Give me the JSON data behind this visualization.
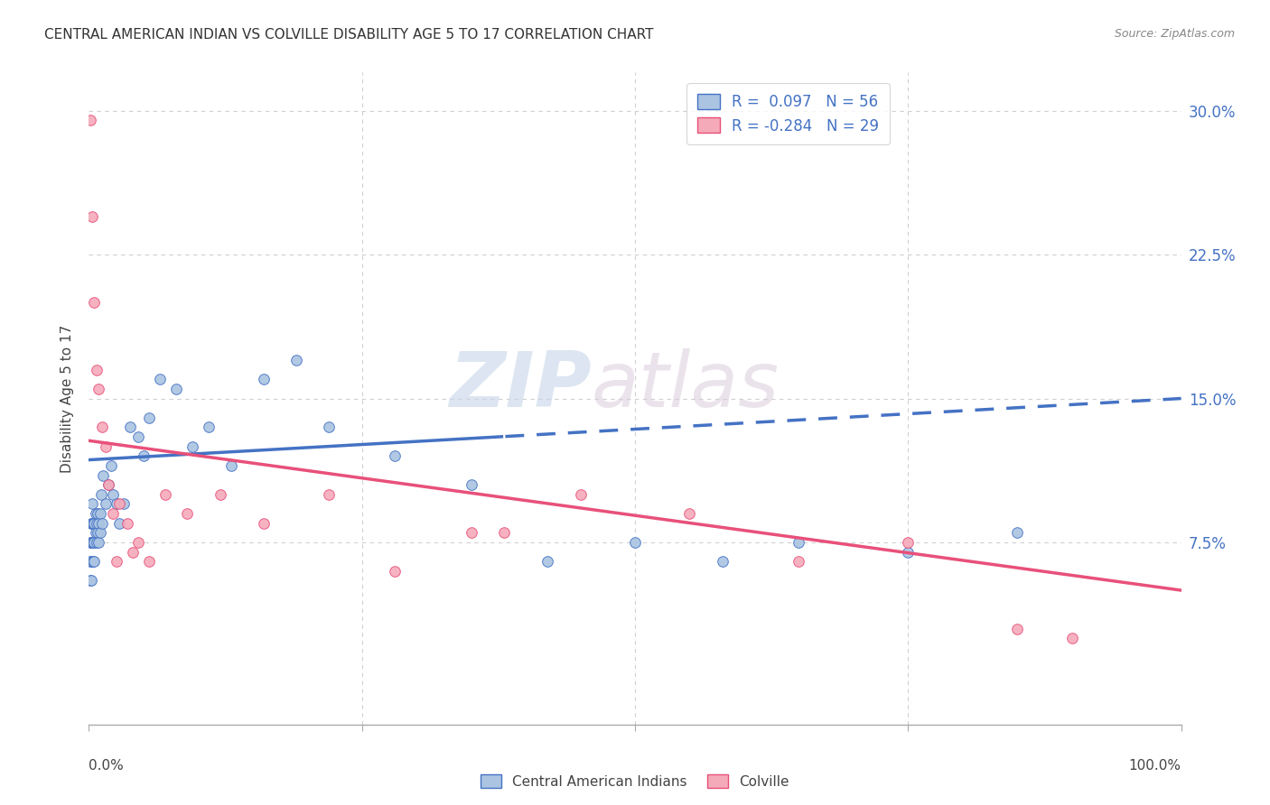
{
  "title": "CENTRAL AMERICAN INDIAN VS COLVILLE DISABILITY AGE 5 TO 17 CORRELATION CHART",
  "source": "Source: ZipAtlas.com",
  "ylabel": "Disability Age 5 to 17",
  "ytick_labels": [
    "7.5%",
    "15.0%",
    "22.5%",
    "30.0%"
  ],
  "ytick_values": [
    0.075,
    0.15,
    0.225,
    0.3
  ],
  "xlim": [
    0.0,
    1.0
  ],
  "ylim": [
    -0.02,
    0.32
  ],
  "blue_R": 0.097,
  "blue_N": 56,
  "pink_R": -0.284,
  "pink_N": 29,
  "blue_color": "#aac4e2",
  "pink_color": "#f5aaba",
  "blue_line_color": "#4472c4",
  "pink_line_color": "#e8507a",
  "watermark_zip": "ZIP",
  "watermark_atlas": "atlas",
  "legend_label_blue": "Central American Indians",
  "legend_label_pink": "Colville",
  "blue_line_solid_end": 0.38,
  "blue_points_x": [
    0.001,
    0.001,
    0.001,
    0.002,
    0.002,
    0.002,
    0.002,
    0.003,
    0.003,
    0.003,
    0.004,
    0.004,
    0.004,
    0.005,
    0.005,
    0.005,
    0.006,
    0.006,
    0.007,
    0.007,
    0.008,
    0.008,
    0.009,
    0.009,
    0.01,
    0.01,
    0.011,
    0.012,
    0.013,
    0.015,
    0.018,
    0.02,
    0.022,
    0.025,
    0.028,
    0.032,
    0.038,
    0.045,
    0.05,
    0.055,
    0.065,
    0.08,
    0.095,
    0.11,
    0.13,
    0.16,
    0.19,
    0.22,
    0.28,
    0.35,
    0.42,
    0.5,
    0.58,
    0.65,
    0.75,
    0.85
  ],
  "blue_points_y": [
    0.075,
    0.065,
    0.055,
    0.085,
    0.075,
    0.065,
    0.055,
    0.095,
    0.085,
    0.075,
    0.085,
    0.075,
    0.065,
    0.085,
    0.075,
    0.065,
    0.09,
    0.08,
    0.085,
    0.075,
    0.09,
    0.08,
    0.085,
    0.075,
    0.09,
    0.08,
    0.1,
    0.085,
    0.11,
    0.095,
    0.105,
    0.115,
    0.1,
    0.095,
    0.085,
    0.095,
    0.135,
    0.13,
    0.12,
    0.14,
    0.16,
    0.155,
    0.125,
    0.135,
    0.115,
    0.16,
    0.17,
    0.135,
    0.12,
    0.105,
    0.065,
    0.075,
    0.065,
    0.075,
    0.07,
    0.08
  ],
  "pink_points_x": [
    0.001,
    0.003,
    0.005,
    0.007,
    0.009,
    0.012,
    0.015,
    0.018,
    0.022,
    0.028,
    0.035,
    0.045,
    0.055,
    0.07,
    0.09,
    0.12,
    0.16,
    0.22,
    0.28,
    0.35,
    0.45,
    0.55,
    0.65,
    0.75,
    0.85,
    0.9,
    0.025,
    0.04,
    0.38
  ],
  "pink_points_y": [
    0.295,
    0.245,
    0.2,
    0.165,
    0.155,
    0.135,
    0.125,
    0.105,
    0.09,
    0.095,
    0.085,
    0.075,
    0.065,
    0.1,
    0.09,
    0.1,
    0.085,
    0.1,
    0.06,
    0.08,
    0.1,
    0.09,
    0.065,
    0.075,
    0.03,
    0.025,
    0.065,
    0.07,
    0.08
  ]
}
